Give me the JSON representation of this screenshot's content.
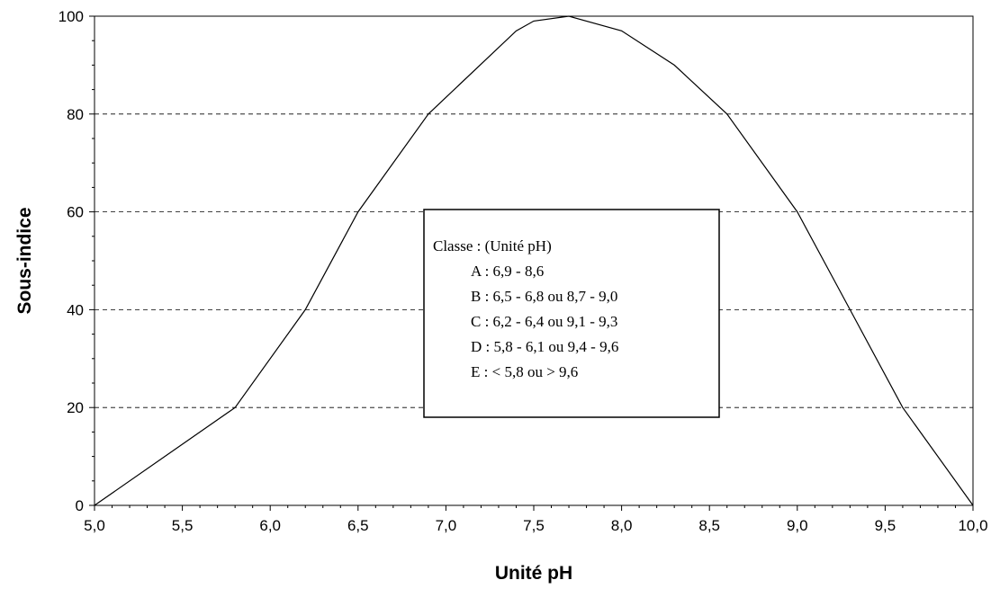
{
  "chart_data": {
    "type": "line",
    "xlabel": "Unité pH",
    "ylabel": "Sous-indice",
    "xlim": [
      5.0,
      10.0
    ],
    "ylim": [
      0,
      100
    ],
    "x_ticks": [
      "5,0",
      "5,5",
      "6,0",
      "6,5",
      "7,0",
      "7,5",
      "8,0",
      "8,5",
      "9,0",
      "9,5",
      "10,0"
    ],
    "y_ticks": [
      "0",
      "20",
      "40",
      "60",
      "80",
      "100"
    ],
    "grid": "horizontal dashed at 20, 40, 60, 80",
    "series": [
      {
        "x": [
          5.0,
          5.8,
          6.2,
          6.5,
          6.9,
          7.4,
          7.5,
          7.7,
          8.0,
          8.3,
          8.6,
          9.0,
          9.3,
          9.6,
          10.0
        ],
        "y": [
          0,
          20,
          40,
          60,
          80,
          97,
          99,
          100,
          97,
          90,
          80,
          60,
          40,
          20,
          0
        ]
      }
    ],
    "legend_box": {
      "lines": [
        "Classe : (Unité pH)",
        "A : 6,9 - 8,6",
        "B : 6,5 - 6,8 ou 8,7 - 9,0",
        "C : 6,2 - 6,4 ou 9,1 - 9,3",
        "D : 5,8 - 6,1 ou 9,4 - 9,6",
        "E : < 5,8 ou > 9,6"
      ]
    }
  }
}
